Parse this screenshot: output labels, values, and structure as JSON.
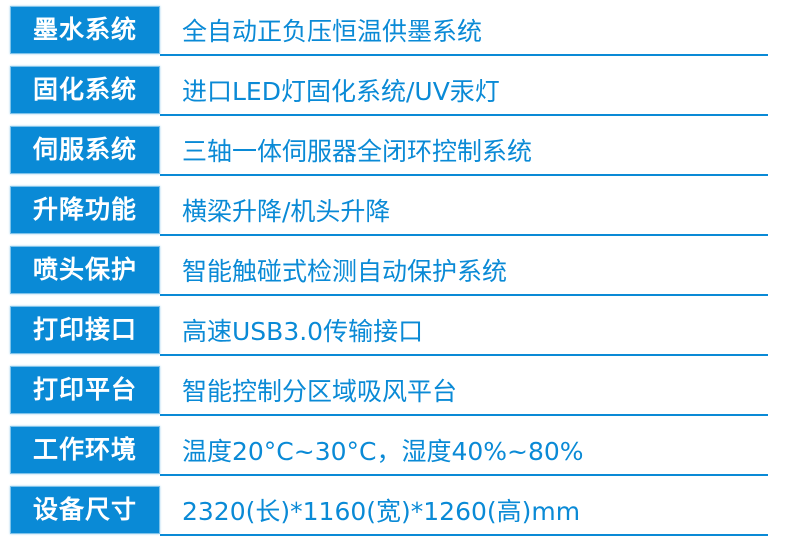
{
  "specs": [
    {
      "label": "墨水系统",
      "value": "全自动正负压恒温供墨系统"
    },
    {
      "label": "固化系统",
      "value": "进口LED灯固化系统/UV汞灯"
    },
    {
      "label": "伺服系统",
      "value": "三轴一体伺服器全闭环控制系统"
    },
    {
      "label": "升降功能",
      "value": "横梁升降/机头升降"
    },
    {
      "label": "喷头保护",
      "value": "智能触碰式检测自动保护系统"
    },
    {
      "label": "打印接口",
      "value": "高速USB3.0传输接口"
    },
    {
      "label": "打印平台",
      "value": "智能控制分区域吸风平台"
    },
    {
      "label": "工作环境",
      "value": "温度20°C~30°C，湿度40%~80%"
    },
    {
      "label": "设备尺寸",
      "value": "2320(长)*1160(宽)*1260(高)mm"
    }
  ],
  "colors": {
    "accent": "#0a8ad6"
  }
}
